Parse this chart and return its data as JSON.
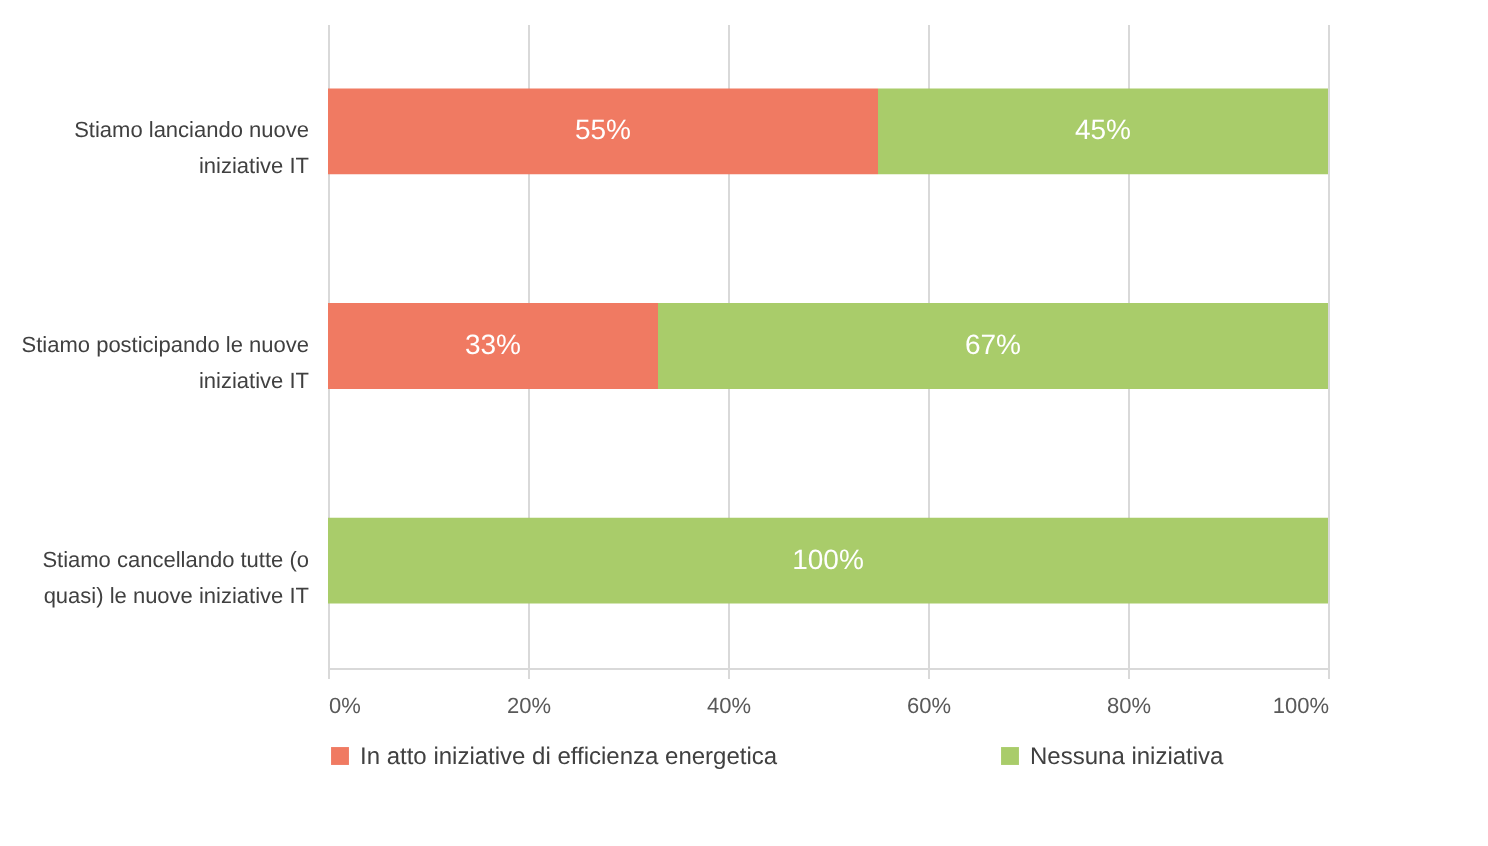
{
  "chart_data": {
    "type": "bar",
    "orientation": "horizontal",
    "stacked": true,
    "categories": [
      "Stiamo lanciando nuove iniziative IT",
      "Stiamo posticipando le nuove iniziative IT",
      "Stiamo cancellando tutte (o quasi) le nuove iniziative IT"
    ],
    "series": [
      {
        "name": "In atto iniziative di efficienza energetica",
        "color": "#f07a62",
        "values": [
          55,
          33,
          0
        ],
        "value_labels": [
          "55%",
          "33%",
          null
        ]
      },
      {
        "name": "Nessuna iniziativa",
        "color": "#a9cc6a",
        "values": [
          45,
          67,
          100
        ],
        "value_labels": [
          "45%",
          "67%",
          "100%"
        ]
      }
    ],
    "xlim": [
      0,
      100
    ],
    "xticks": [
      {
        "value": 0,
        "label": "0%"
      },
      {
        "value": 20,
        "label": "20%"
      },
      {
        "value": 40,
        "label": "40%"
      },
      {
        "value": 60,
        "label": "60%"
      },
      {
        "value": 80,
        "label": "80%"
      },
      {
        "value": 100,
        "label": "100%"
      }
    ],
    "grid": "x",
    "legend": "bottom"
  }
}
